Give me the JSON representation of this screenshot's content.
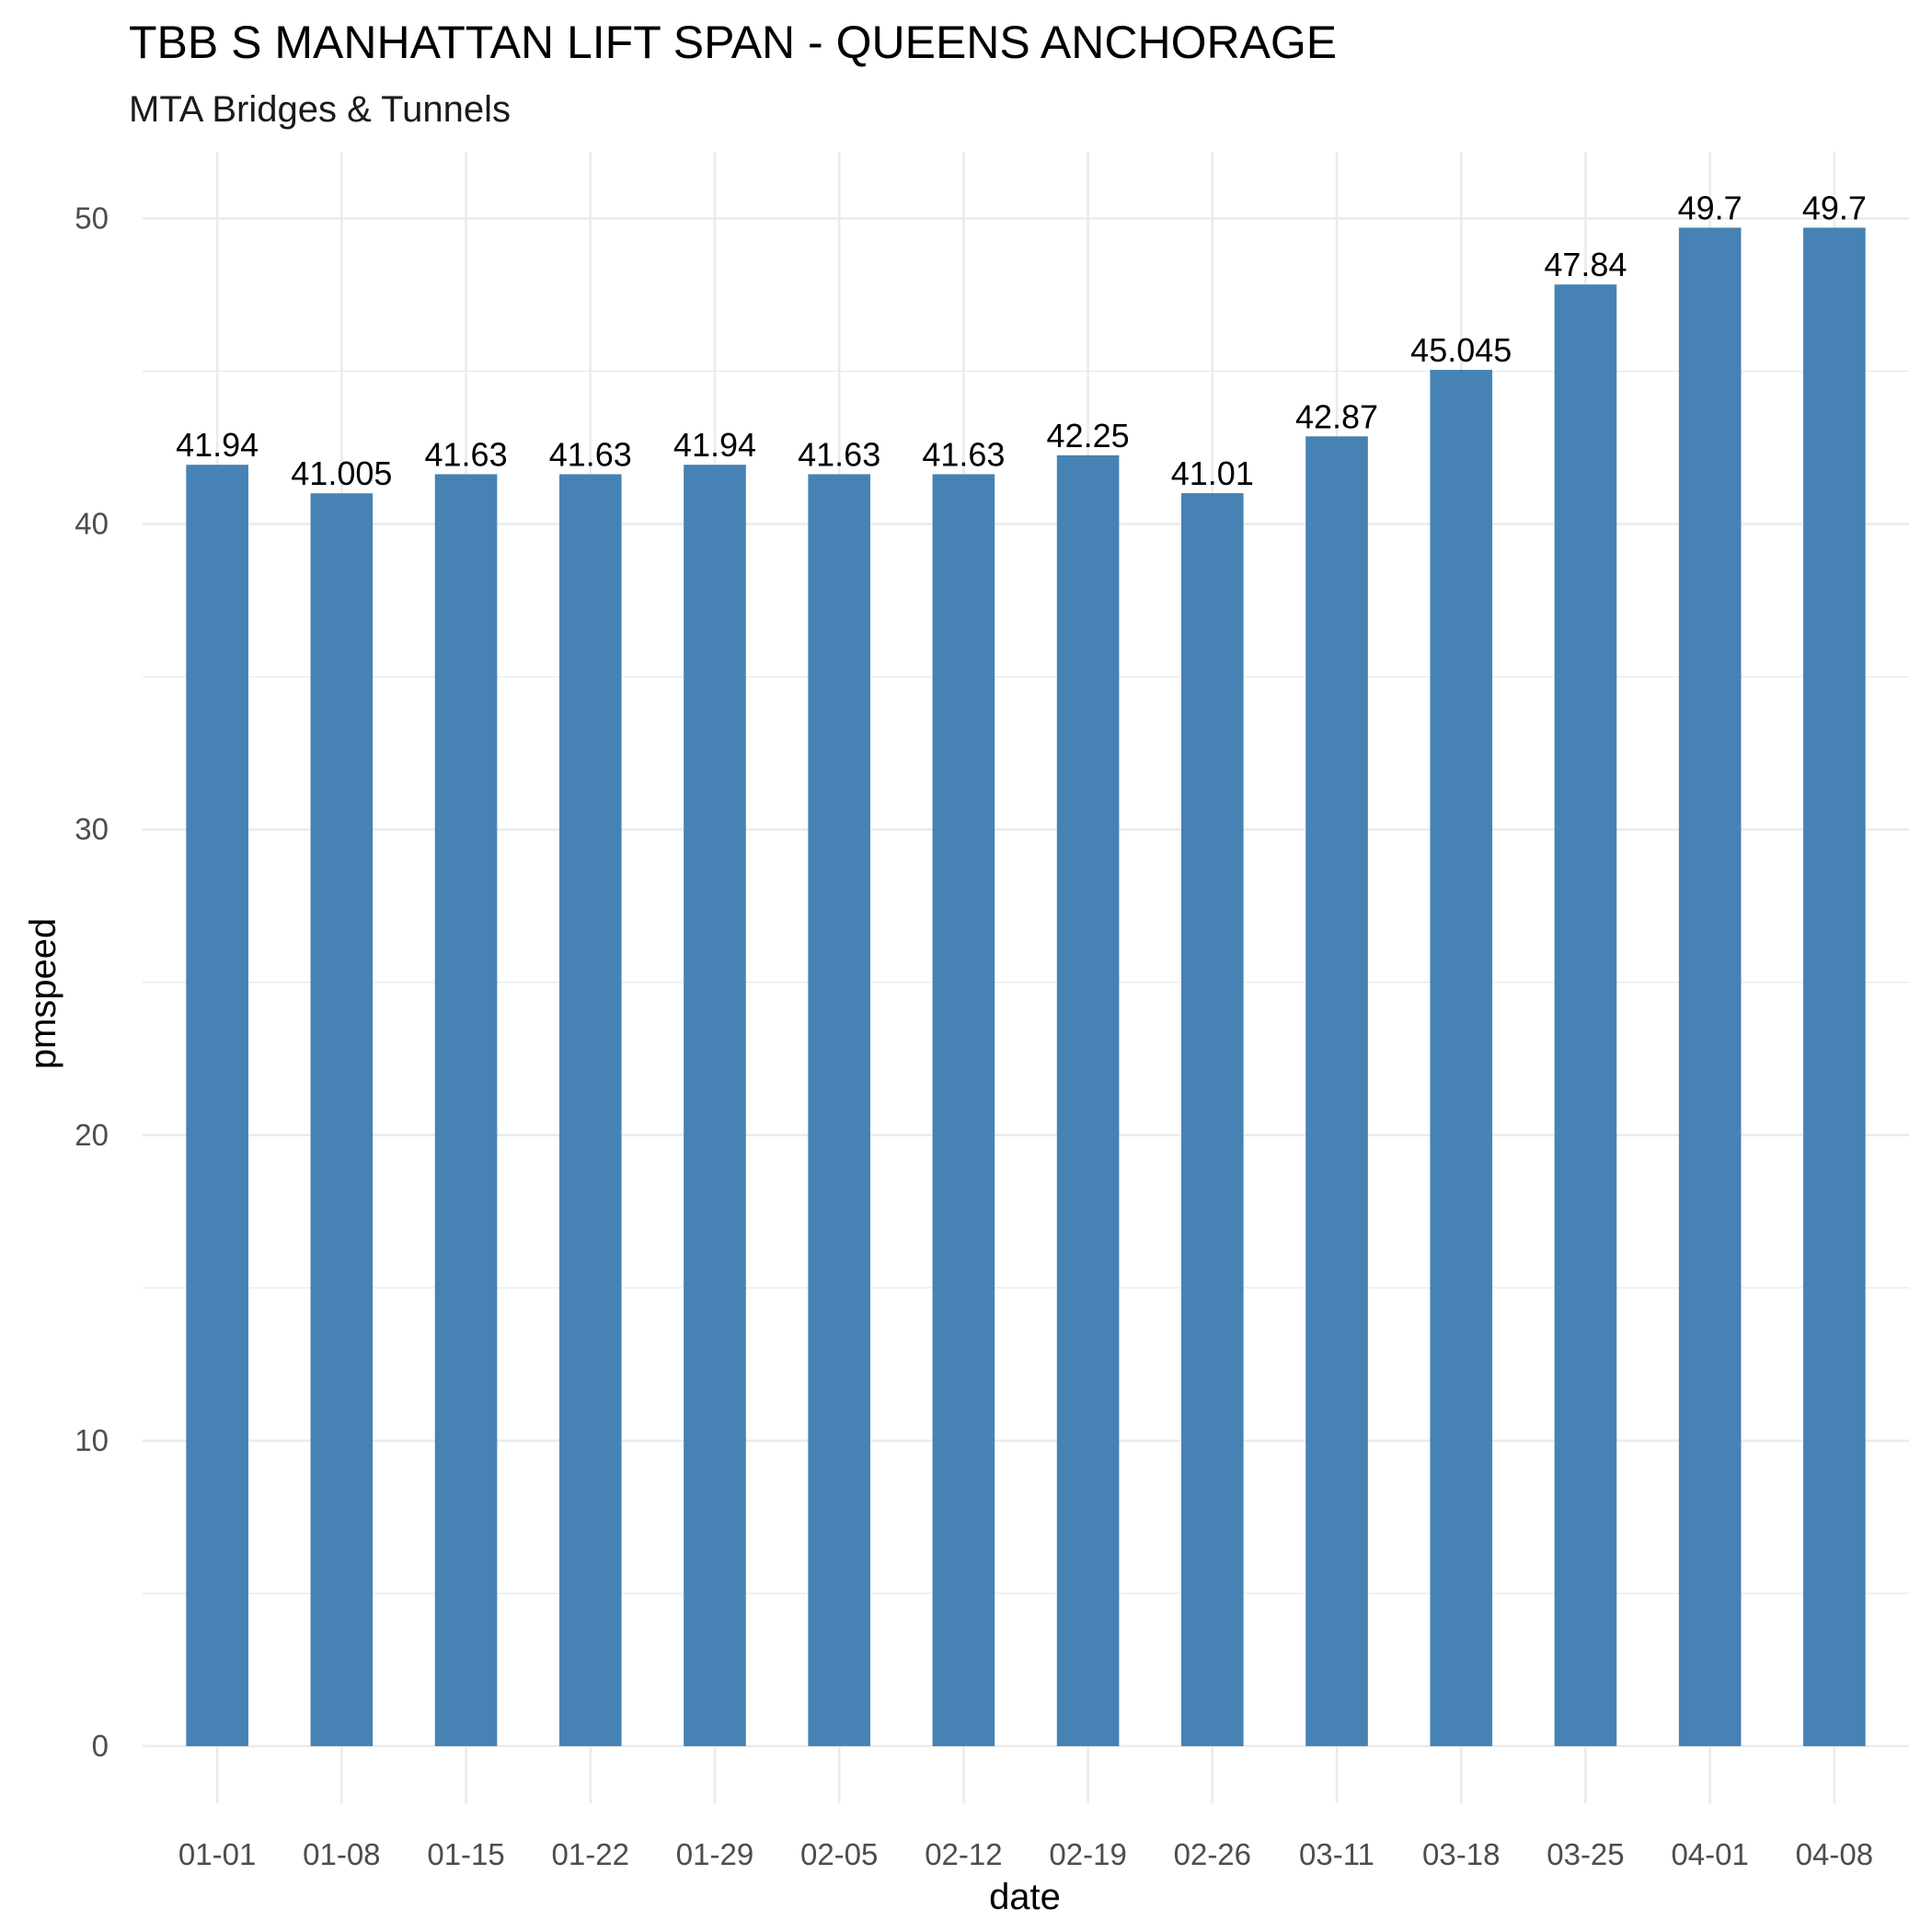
{
  "chart_data": {
    "type": "bar",
    "title": "TBB S MANHATTAN LIFT SPAN - QUEENS ANCHORAGE",
    "subtitle": "MTA Bridges & Tunnels",
    "xlabel": "date",
    "ylabel": "pmspeed",
    "categories": [
      "01-01",
      "01-08",
      "01-15",
      "01-22",
      "01-29",
      "02-05",
      "02-12",
      "02-19",
      "02-26",
      "03-11",
      "03-18",
      "03-25",
      "04-01",
      "04-08"
    ],
    "values": [
      41.94,
      41.005,
      41.63,
      41.63,
      41.94,
      41.63,
      41.63,
      42.25,
      41.01,
      42.87,
      45.045,
      47.84,
      49.7,
      49.7
    ],
    "value_labels": [
      "41.94",
      "41.005",
      "41.63",
      "41.63",
      "41.94",
      "41.63",
      "41.63",
      "42.25",
      "41.01",
      "42.87",
      "45.045",
      "47.84",
      "49.7",
      "49.7"
    ],
    "ylim": [
      0,
      52.2
    ],
    "yticks": [
      0,
      10,
      20,
      30,
      40,
      50
    ],
    "ytick_labels": [
      "0",
      "10",
      "20",
      "30",
      "40",
      "50"
    ],
    "grid": true,
    "legend": "none",
    "bar_color": "#4682B4"
  }
}
